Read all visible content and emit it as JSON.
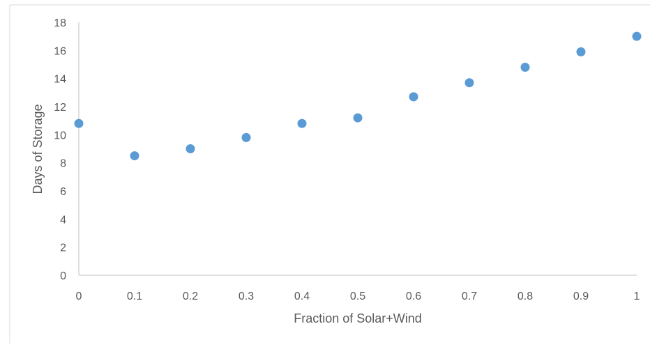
{
  "chart_data": {
    "type": "scatter",
    "title": "",
    "xlabel": "Fraction of Solar+Wind",
    "ylabel": "Days of Storage",
    "xlim": [
      0,
      1
    ],
    "ylim": [
      0,
      18
    ],
    "x_ticks": [
      "0",
      "0.1",
      "0.2",
      "0.3",
      "0.4",
      "0.5",
      "0.6",
      "0.7",
      "0.8",
      "0.9",
      "1"
    ],
    "y_ticks": [
      "0",
      "2",
      "4",
      "6",
      "8",
      "10",
      "12",
      "14",
      "16",
      "18"
    ],
    "grid": false,
    "legend": "none",
    "series": [
      {
        "color": "#5b9bd5",
        "x": [
          0,
          0.1,
          0.2,
          0.3,
          0.4,
          0.5,
          0.6,
          0.7,
          0.8,
          0.9,
          1
        ],
        "y": [
          10.8,
          8.5,
          9.0,
          9.8,
          10.8,
          11.2,
          12.7,
          13.7,
          14.8,
          15.9,
          17.0
        ]
      }
    ]
  }
}
